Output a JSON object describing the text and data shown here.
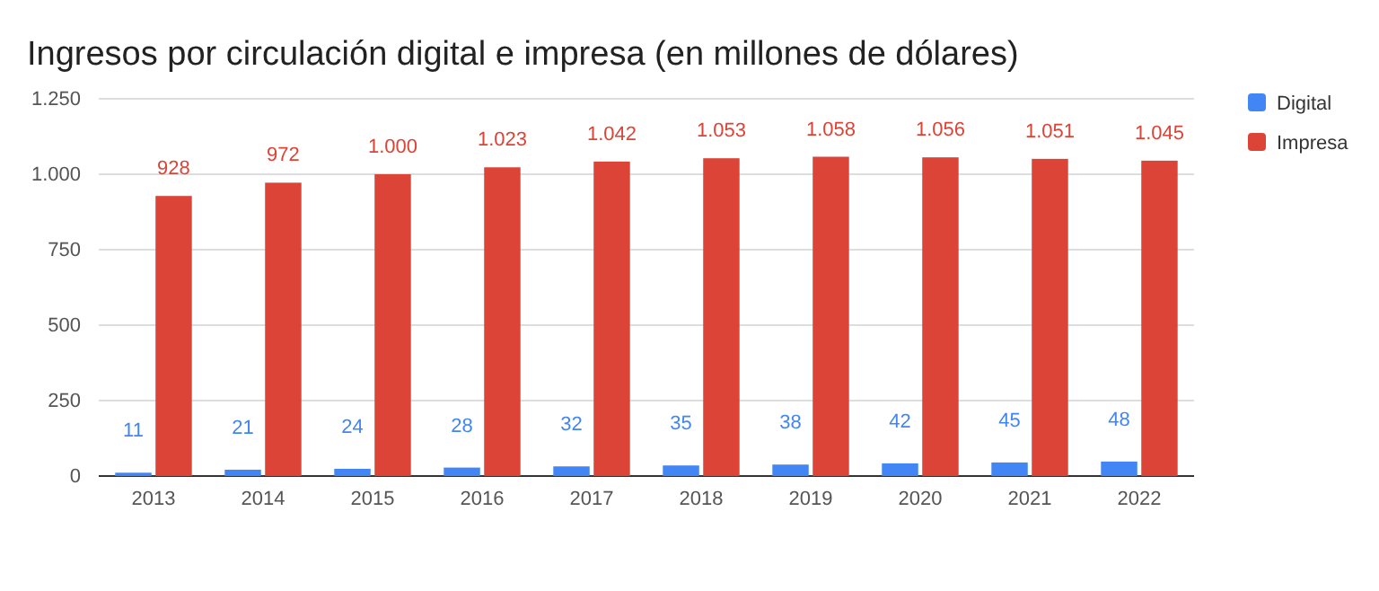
{
  "chart_data": {
    "type": "bar",
    "title": "Ingresos por circulación digital e impresa (en millones de dólares)",
    "categories": [
      "2013",
      "2014",
      "2015",
      "2016",
      "2017",
      "2018",
      "2019",
      "2020",
      "2021",
      "2022"
    ],
    "series": [
      {
        "name": "Digital",
        "color": "#4285f4",
        "values": [
          11,
          21,
          24,
          28,
          32,
          35,
          38,
          42,
          45,
          48
        ],
        "value_labels": [
          "11",
          "21",
          "24",
          "28",
          "32",
          "35",
          "38",
          "42",
          "45",
          "48"
        ]
      },
      {
        "name": "Impresa",
        "color": "#db4437",
        "values": [
          928,
          972,
          1000,
          1023,
          1042,
          1053,
          1058,
          1056,
          1051,
          1045
        ],
        "value_labels": [
          "928",
          "972",
          "1.000",
          "1.023",
          "1.042",
          "1.053",
          "1.058",
          "1.056",
          "1.051",
          "1.045"
        ]
      }
    ],
    "ylim": [
      0,
      1250
    ],
    "yticks": [
      0,
      250,
      500,
      750,
      {
        "value": 1000,
        "label": "1.000"
      },
      {
        "value": 1250,
        "label": "1.250"
      }
    ],
    "grid": "y",
    "legend": "right"
  }
}
